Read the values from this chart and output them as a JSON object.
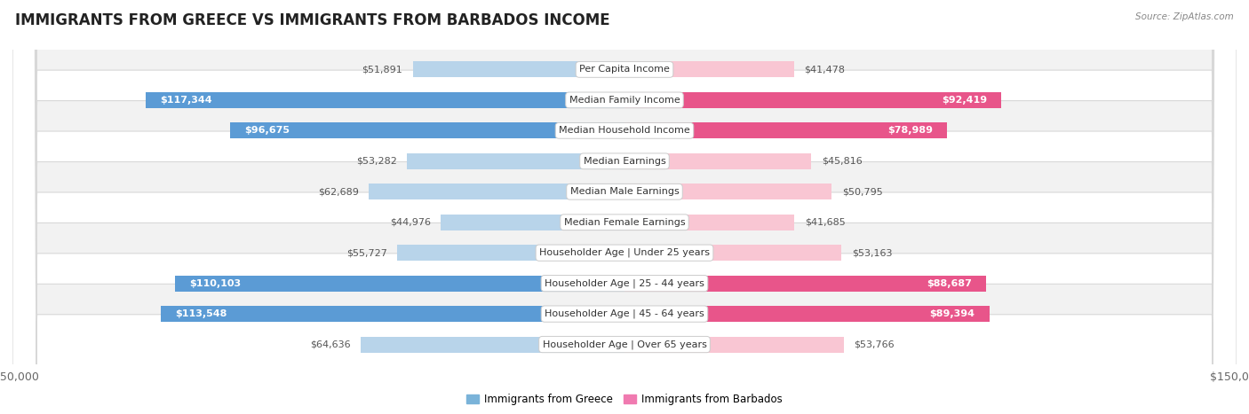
{
  "title": "IMMIGRANTS FROM GREECE VS IMMIGRANTS FROM BARBADOS INCOME",
  "source": "Source: ZipAtlas.com",
  "categories": [
    "Per Capita Income",
    "Median Family Income",
    "Median Household Income",
    "Median Earnings",
    "Median Male Earnings",
    "Median Female Earnings",
    "Householder Age | Under 25 years",
    "Householder Age | 25 - 44 years",
    "Householder Age | 45 - 64 years",
    "Householder Age | Over 65 years"
  ],
  "greece_values": [
    51891,
    117344,
    96675,
    53282,
    62689,
    44976,
    55727,
    110103,
    113548,
    64636
  ],
  "barbados_values": [
    41478,
    92419,
    78989,
    45816,
    50795,
    41685,
    53163,
    88687,
    89394,
    53766
  ],
  "greece_labels": [
    "$51,891",
    "$117,344",
    "$96,675",
    "$53,282",
    "$62,689",
    "$44,976",
    "$55,727",
    "$110,103",
    "$113,548",
    "$64,636"
  ],
  "barbados_labels": [
    "$41,478",
    "$92,419",
    "$78,989",
    "$45,816",
    "$50,795",
    "$41,685",
    "$53,163",
    "$88,687",
    "$89,394",
    "$53,766"
  ],
  "greece_color_light": "#b8d4ea",
  "greece_color_dark": "#5b9bd5",
  "barbados_color_light": "#f9c6d3",
  "barbados_color_dark": "#e8558a",
  "greece_threshold": 70000,
  "barbados_threshold": 70000,
  "max_value": 150000,
  "background_color": "#ffffff",
  "row_colors": [
    "#f2f2f2",
    "#ffffff",
    "#f2f2f2",
    "#ffffff",
    "#f2f2f2",
    "#ffffff",
    "#f2f2f2",
    "#ffffff",
    "#f2f2f2",
    "#ffffff"
  ],
  "row_border_color": "#d8d8d8",
  "title_fontsize": 12,
  "label_fontsize": 8,
  "value_fontsize": 8,
  "axis_fontsize": 9,
  "legend_greece_color": "#7ab3d9",
  "legend_barbados_color": "#f07ab0"
}
